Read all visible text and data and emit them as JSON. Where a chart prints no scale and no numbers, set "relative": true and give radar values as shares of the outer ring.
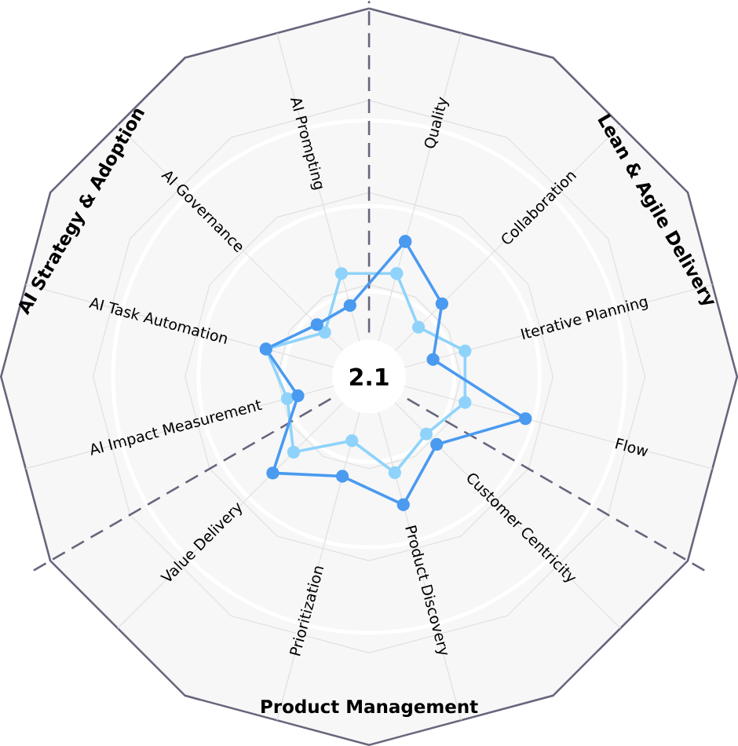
{
  "chart_data": {
    "type": "radar",
    "relative": true,
    "marker": "circle",
    "categories": [
      "Quality",
      "Collaboration",
      "Iterative Planning",
      "Flow",
      "Customer Centricity",
      "Product Discovery",
      "Prioritization",
      "Value Delivery",
      "AI Impact Measurement",
      "AI Task Automation",
      "AI Governance",
      "AI Prompting"
    ],
    "series": [
      {
        "color": "#4a9af0",
        "values": [
          0.38,
          0.28,
          0.18,
          0.44,
          0.26,
          0.36,
          0.28,
          0.37,
          0.2,
          0.29,
          0.2,
          0.2
        ]
      },
      {
        "color": "#8fd3fb",
        "values": [
          0.29,
          0.19,
          0.27,
          0.27,
          0.22,
          0.27,
          0.18,
          0.29,
          0.23,
          0.29,
          0.17,
          0.29
        ]
      }
    ],
    "annotations": [
      "2.1",
      "Lean & Agile Delivery",
      "Product Management",
      "AI Strategy & Adoption"
    ]
  }
}
